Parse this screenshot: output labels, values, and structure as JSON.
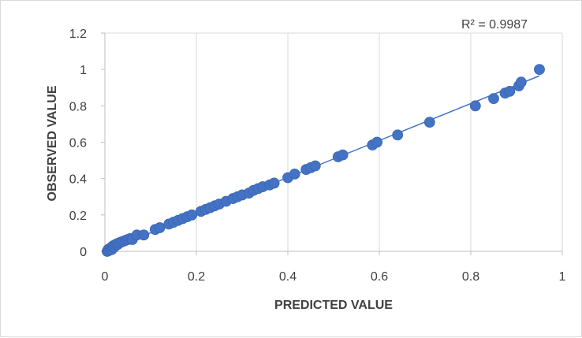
{
  "chart_data": {
    "type": "scatter",
    "xlabel": "PREDICTED VALUE",
    "ylabel": "OBSERVED VALUE",
    "xlim": [
      0,
      1
    ],
    "ylim": [
      0,
      1.2
    ],
    "x_ticks": [
      0,
      0.2,
      0.4,
      0.6,
      0.8,
      1
    ],
    "y_ticks": [
      0,
      0.2,
      0.4,
      0.6,
      0.8,
      1,
      1.2
    ],
    "x_tick_labels": [
      "0",
      "0.2",
      "0.4",
      "0.6",
      "0.8",
      "1"
    ],
    "y_tick_labels": [
      "0",
      "0.2",
      "0.4",
      "0.6",
      "0.8",
      "1",
      "1.2"
    ],
    "grid": "vertical",
    "annotation": "R² = 0.9987",
    "trendline": {
      "type": "linear",
      "x": [
        0.005,
        0.95
      ],
      "y": [
        0.005,
        0.965
      ]
    },
    "colors": {
      "marker": "#4472c4",
      "trendline": "#4472c4",
      "grid": "#d9d9d9",
      "axis": "#bfbfbf"
    },
    "series": [
      {
        "points": [
          [
            0.005,
            0.0
          ],
          [
            0.007,
            0.01
          ],
          [
            0.009,
            0.005
          ],
          [
            0.011,
            0.015
          ],
          [
            0.013,
            0.02
          ],
          [
            0.015,
            0.01
          ],
          [
            0.016,
            0.025
          ],
          [
            0.018,
            0.03
          ],
          [
            0.02,
            0.022
          ],
          [
            0.022,
            0.035
          ],
          [
            0.025,
            0.04
          ],
          [
            0.028,
            0.038
          ],
          [
            0.03,
            0.045
          ],
          [
            0.035,
            0.05
          ],
          [
            0.04,
            0.055
          ],
          [
            0.045,
            0.06
          ],
          [
            0.05,
            0.065
          ],
          [
            0.055,
            0.07
          ],
          [
            0.06,
            0.065
          ],
          [
            0.07,
            0.09
          ],
          [
            0.085,
            0.09
          ],
          [
            0.11,
            0.12
          ],
          [
            0.12,
            0.13
          ],
          [
            0.14,
            0.15
          ],
          [
            0.15,
            0.16
          ],
          [
            0.16,
            0.17
          ],
          [
            0.17,
            0.18
          ],
          [
            0.18,
            0.19
          ],
          [
            0.19,
            0.2
          ],
          [
            0.21,
            0.22
          ],
          [
            0.22,
            0.23
          ],
          [
            0.23,
            0.24
          ],
          [
            0.24,
            0.25
          ],
          [
            0.25,
            0.26
          ],
          [
            0.265,
            0.275
          ],
          [
            0.28,
            0.29
          ],
          [
            0.29,
            0.3
          ],
          [
            0.3,
            0.31
          ],
          [
            0.315,
            0.32
          ],
          [
            0.325,
            0.335
          ],
          [
            0.335,
            0.345
          ],
          [
            0.345,
            0.355
          ],
          [
            0.36,
            0.365
          ],
          [
            0.37,
            0.375
          ],
          [
            0.4,
            0.405
          ],
          [
            0.415,
            0.425
          ],
          [
            0.44,
            0.45
          ],
          [
            0.45,
            0.46
          ],
          [
            0.46,
            0.47
          ],
          [
            0.51,
            0.52
          ],
          [
            0.52,
            0.53
          ],
          [
            0.585,
            0.585
          ],
          [
            0.595,
            0.6
          ],
          [
            0.64,
            0.64
          ],
          [
            0.71,
            0.71
          ],
          [
            0.81,
            0.8
          ],
          [
            0.85,
            0.84
          ],
          [
            0.875,
            0.87
          ],
          [
            0.885,
            0.88
          ],
          [
            0.905,
            0.91
          ],
          [
            0.91,
            0.93
          ],
          [
            0.95,
            1.0
          ]
        ]
      }
    ]
  }
}
